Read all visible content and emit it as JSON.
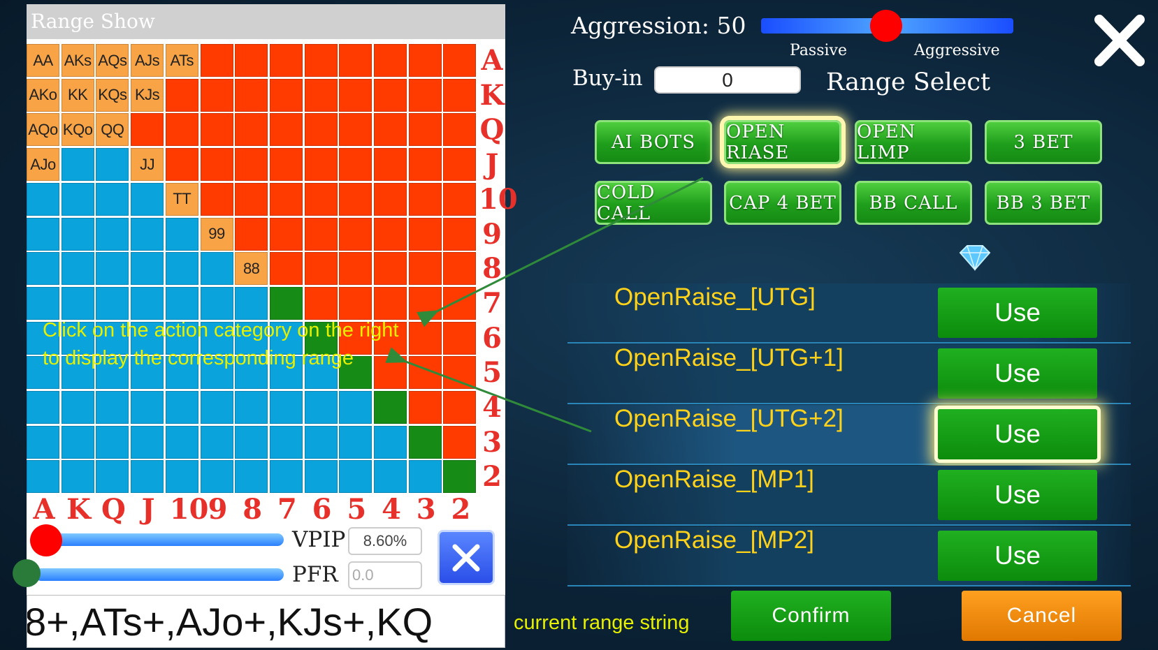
{
  "range_show": {
    "title": "Range Show",
    "grid": {
      "colors": {
        "o": "#f8a446",
        "r": "#ff3b00",
        "b": "#0aa3dc",
        "g": "#168c16"
      },
      "rows": [
        "ooooorrrrrrrr",
        "oooorrrrrrrrr",
        "ooorrrrrrrrrr",
        "obborrrrrrrrr",
        "bbbborrrrrrrr",
        "bbbbborrrrrrr",
        "bbbbbborrrrrr",
        "bbbbbbbgrrrrr",
        "bbbbbbbbgrrrr",
        "bbbbbbbbbgrrr",
        "bbbbbbbbbbgrr",
        "bbbbbbbbbbbgr",
        "bbbbbbbbbbbbg"
      ],
      "labels": [
        [
          "AA",
          "AKs",
          "AQs",
          "AJs",
          "ATs"
        ],
        [
          "AKo",
          "KK",
          "KQs",
          "KJs"
        ],
        [
          "AQo",
          "KQo",
          "QQ"
        ],
        [
          "AJo",
          null,
          null,
          "JJ"
        ],
        [
          null,
          null,
          null,
          null,
          "TT"
        ],
        [
          null,
          null,
          null,
          null,
          null,
          "99"
        ],
        [
          null,
          null,
          null,
          null,
          null,
          null,
          "88"
        ],
        [],
        [],
        [],
        [],
        [],
        []
      ]
    },
    "rank_labels_right": [
      "A",
      "K",
      "Q",
      "J",
      "10",
      "9",
      "8",
      "7",
      "6",
      "5",
      "4",
      "3",
      "2"
    ],
    "rank_labels_bottom": [
      "A",
      "K",
      "Q",
      "J",
      "10",
      "9",
      "8",
      "7",
      "6",
      "5",
      "4",
      "3",
      "2"
    ],
    "vpip": {
      "label": "VPIP",
      "value": "8.60%"
    },
    "pfr": {
      "label": "PFR",
      "value": "0.0"
    },
    "range_string": "8+,ATs+,AJo+,KJs+,KQ"
  },
  "annotations": {
    "click_hint": [
      "Click on the action category on the right",
      "to display the corresponding range"
    ],
    "range_string_hint": "current range string"
  },
  "settings": {
    "aggression": "Aggression: 50",
    "passive": "Passive",
    "aggressive": "Aggressive",
    "buy_in_label": "Buy-in",
    "buy_in_value": "0",
    "range_select": "Range Select"
  },
  "categories": [
    "AI BOTS",
    "OPEN RIASE",
    "OPEN LIMP",
    "3 BET",
    "COLD CALL",
    "CAP 4 BET",
    "BB CALL",
    "BB 3 BET"
  ],
  "ranges": [
    {
      "name": "OpenRaise_[UTG]",
      "action": "Use"
    },
    {
      "name": "OpenRaise_[UTG+1]",
      "action": "Use"
    },
    {
      "name": "OpenRaise_[UTG+2]",
      "action": "Use"
    },
    {
      "name": "OpenRaise_[MP1]",
      "action": "Use"
    },
    {
      "name": "OpenRaise_[MP2]",
      "action": "Use"
    }
  ],
  "confirm": "Confirm",
  "cancel": "Cancel"
}
